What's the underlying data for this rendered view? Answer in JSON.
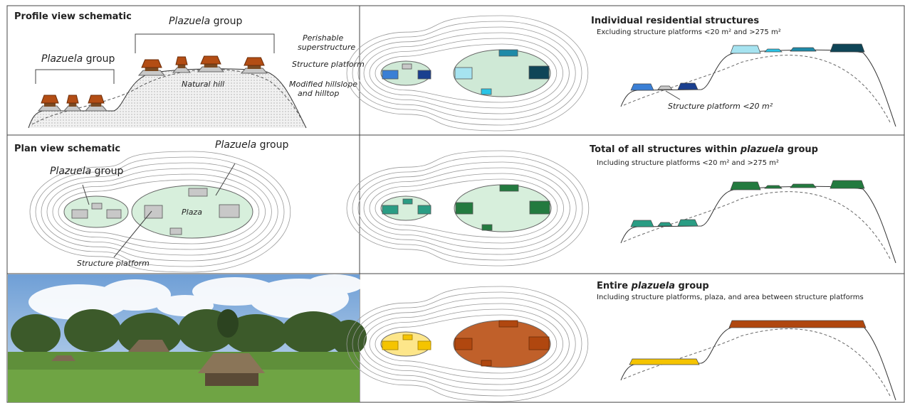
{
  "profile": {
    "title": "Profile view schematic",
    "group_top": {
      "italic": "Plazuela",
      "text": " group"
    },
    "group_left": {
      "italic": "Plazuela",
      "text": " group"
    },
    "superstructure": [
      "Perishable",
      "superstructure"
    ],
    "platform": "Structure platform",
    "hill": "Natural hill",
    "hillslope": [
      "Modified hillslope",
      "and hilltop"
    ]
  },
  "plan": {
    "title": "Plan view schematic",
    "group_right": {
      "italic": "Plazuela",
      "text": " group"
    },
    "group_left": {
      "italic": "Plazuela",
      "text": " group"
    },
    "plaza": "Plaza",
    "platform": "Structure platform"
  },
  "individual": {
    "title": "Individual residential structures",
    "subtitle": "Excluding structure platforms <20 m² and >275 m²",
    "note": "Structure platform <20 m²"
  },
  "total": {
    "title": [
      "Total of all structures within ",
      "plazuela",
      " group"
    ],
    "subtitle": "Including structure platforms <20 m² and >275 m²"
  },
  "entire": {
    "title": [
      "Entire ",
      "plazuela",
      " group"
    ],
    "subtitle": "Including structure platforms, plaza, and area between structure platforms"
  }
}
